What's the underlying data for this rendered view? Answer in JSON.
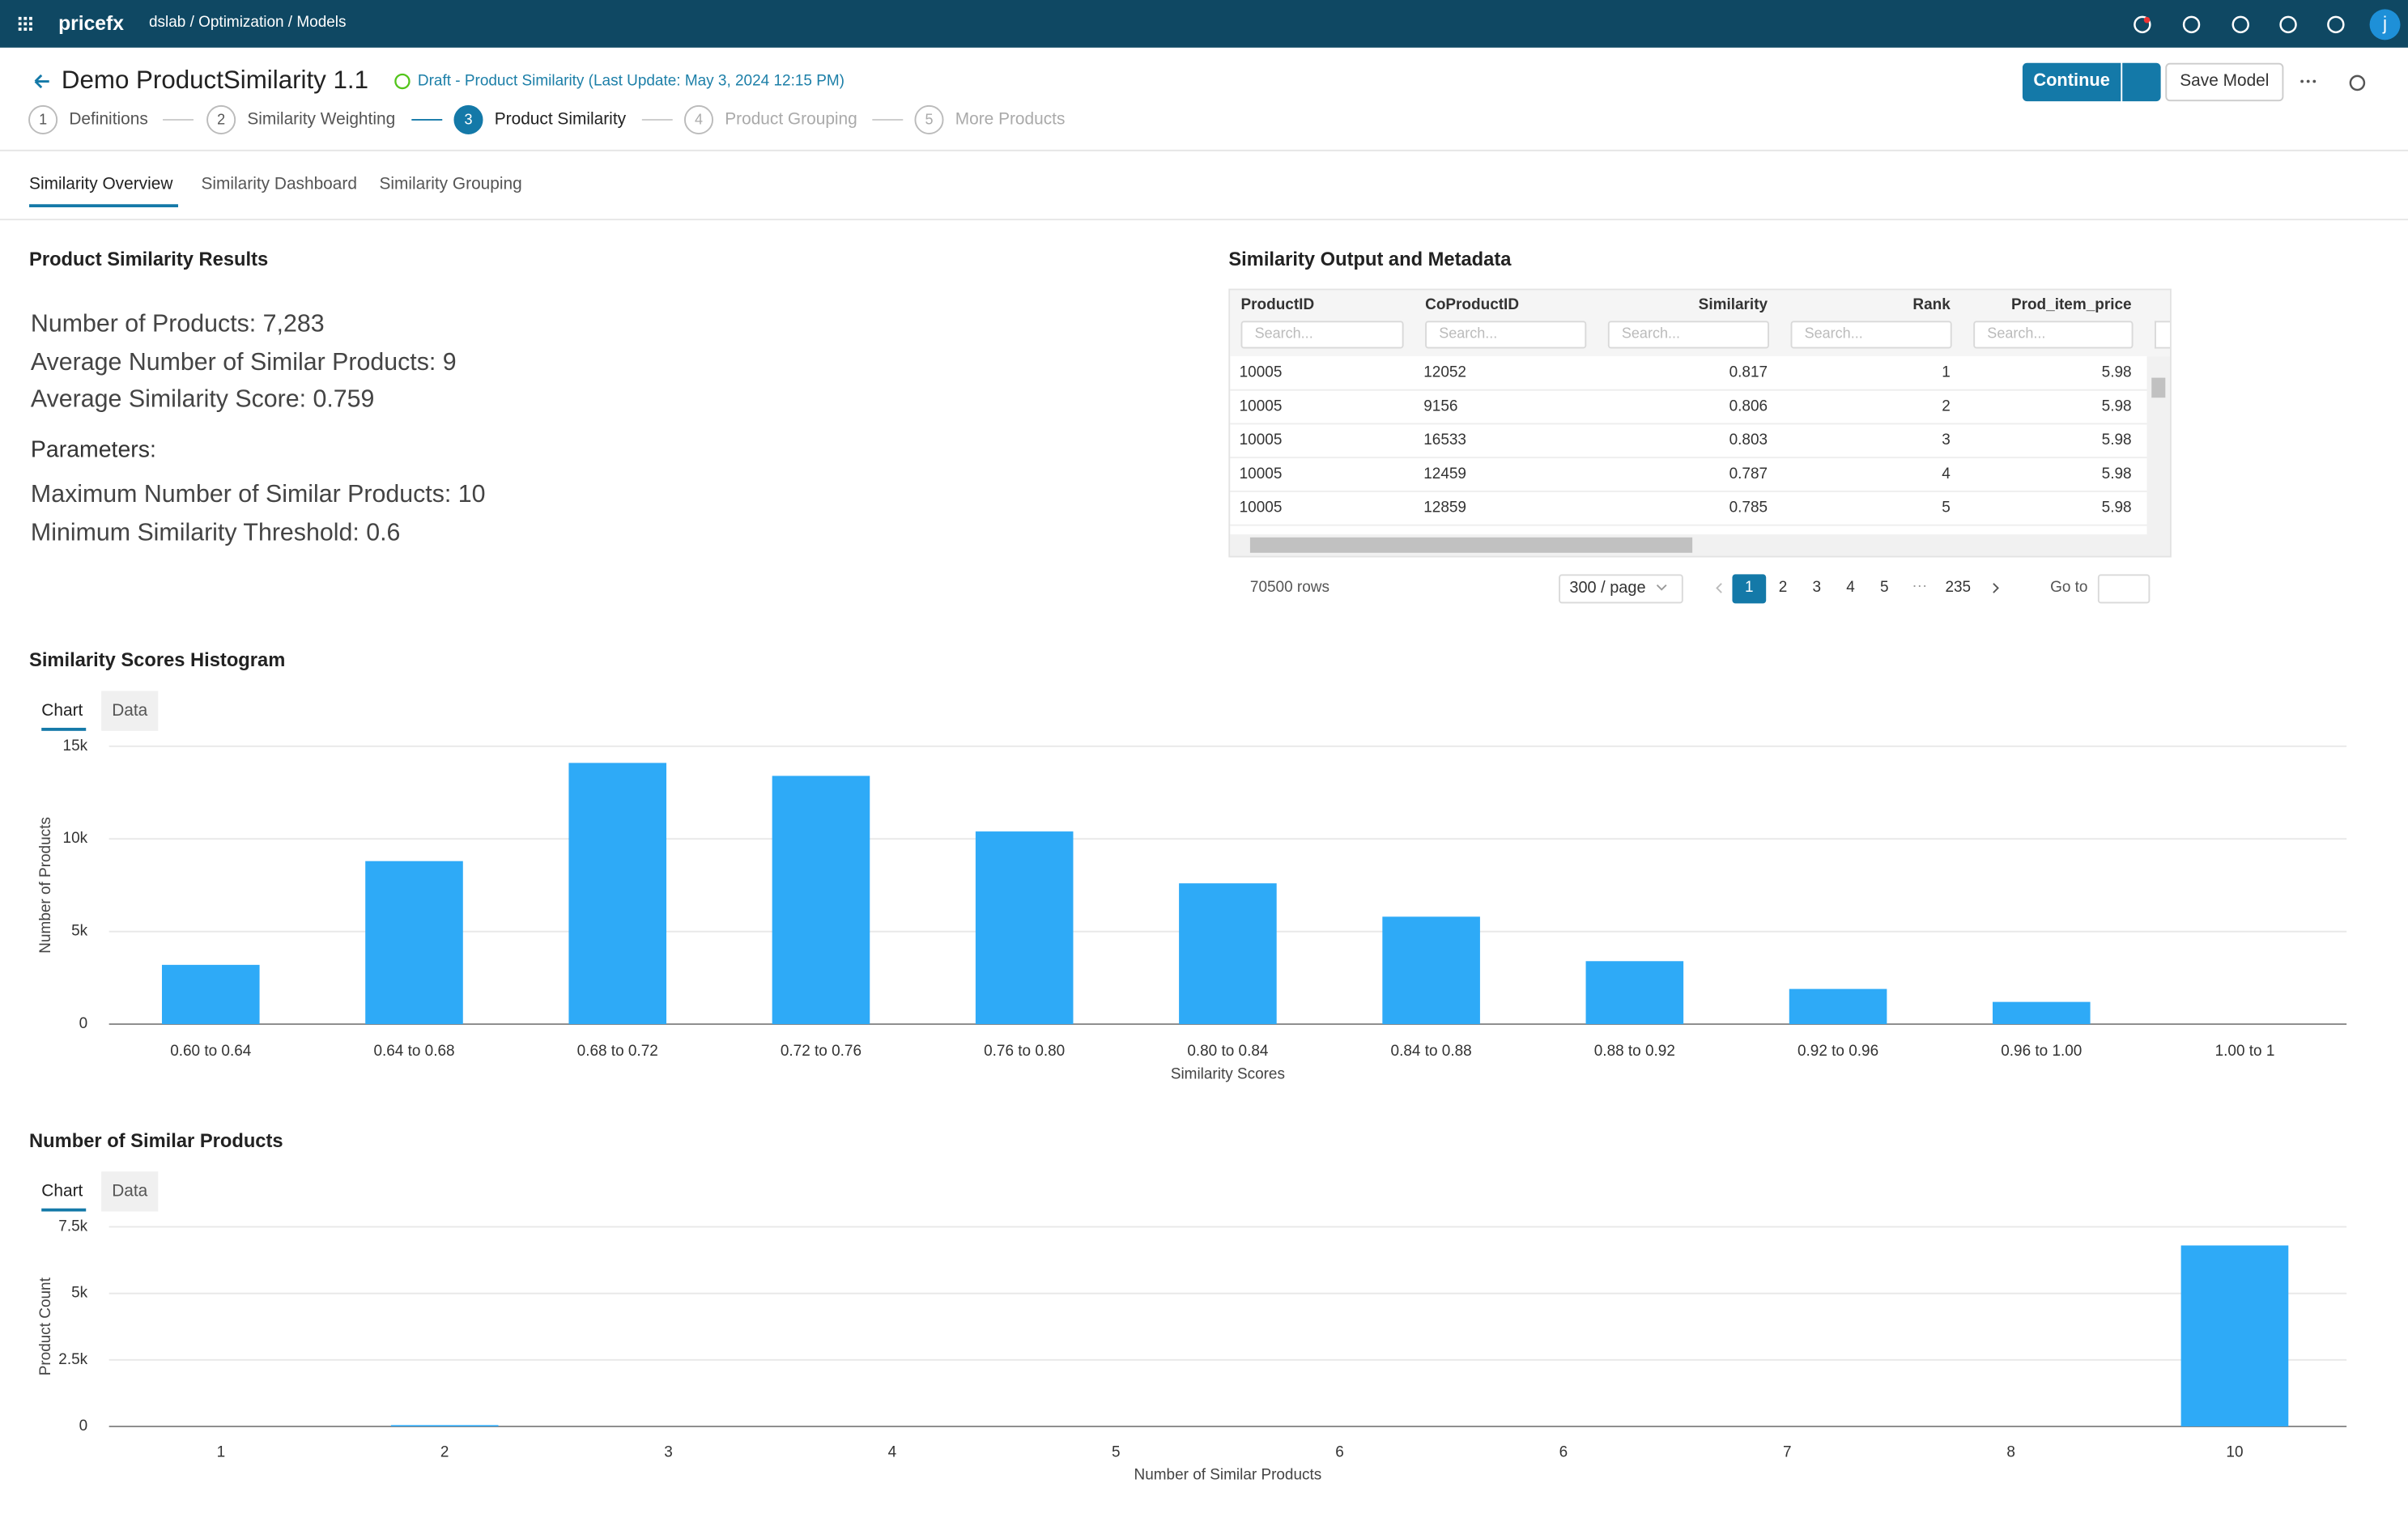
{
  "header": {
    "brand": "pricefx",
    "breadcrumb": "dslab / Optimization / Models",
    "avatar": "j"
  },
  "model": {
    "title": "Demo ProductSimilarity 1.1",
    "status": "Draft - Product Similarity (Last Update: May 3, 2024 12:15 PM)",
    "continue": "Continue",
    "save": "Save Model"
  },
  "steps": [
    {
      "number": "1",
      "label": "Definitions"
    },
    {
      "number": "2",
      "label": "Similarity Weighting"
    },
    {
      "number": "3",
      "label": "Product Similarity"
    },
    {
      "number": "4",
      "label": "Product Grouping"
    },
    {
      "number": "5",
      "label": "More Products"
    }
  ],
  "tabs": [
    "Similarity Overview",
    "Similarity Dashboard",
    "Similarity Grouping"
  ],
  "results": {
    "title": "Product Similarity Results",
    "lines": [
      "Number of Products: 7,283",
      "Average Number of Similar Products: 9",
      "Average Similarity Score: 0.759"
    ],
    "parameters_heading": "Parameters:",
    "parameters": [
      "Maximum Number of Similar Products: 10",
      "Minimum Similarity Threshold: 0.6"
    ]
  },
  "table": {
    "title": "Similarity Output and Metadata",
    "columns": [
      "ProductID",
      "CoProductID",
      "Similarity",
      "Rank",
      "Prod_item_price"
    ],
    "search_placeholder": "Search...",
    "rows": [
      [
        10005,
        12052,
        0.817,
        1,
        5.98
      ],
      [
        10005,
        9156,
        0.806,
        2,
        5.98
      ],
      [
        10005,
        16533,
        0.803,
        3,
        5.98
      ],
      [
        10005,
        12459,
        0.787,
        4,
        5.98
      ],
      [
        10005,
        12859,
        0.785,
        5,
        5.98
      ]
    ],
    "row_count": "70500 rows",
    "page_size": "300 / page",
    "pages": [
      "1",
      "2",
      "3",
      "4",
      "5",
      "235"
    ],
    "ellipsis": "···",
    "goto": "Go to"
  },
  "chart_tabs": [
    "Chart",
    "Data"
  ],
  "chart_data": [
    {
      "type": "bar",
      "title": "Similarity Scores Histogram",
      "x_label": "Similarity Scores",
      "y_label": "Number of Products",
      "color": "#2eaaf7",
      "categories": [
        "0.60 to 0.64",
        "0.64 to 0.68",
        "0.68 to 0.72",
        "0.72 to 0.76",
        "0.76 to 0.80",
        "0.80 to 0.84",
        "0.84 to 0.88",
        "0.88 to 0.92",
        "0.92 to 0.96",
        "0.96 to 1.00",
        "1.00 to 1"
      ],
      "values": [
        3200,
        8800,
        14100,
        13400,
        10400,
        7600,
        5800,
        3400,
        1900,
        1200,
        0
      ],
      "ylim": [
        0,
        15000
      ],
      "yticks": [
        0,
        {
          "value": 5000,
          "label": "5k"
        },
        {
          "value": 10000,
          "label": "10k"
        },
        {
          "value": 15000,
          "label": "15k"
        }
      ],
      "grid": true
    },
    {
      "type": "bar",
      "title": "Number of Similar Products",
      "x_label": "Number of Similar Products",
      "y_label": "Product Count",
      "color": "#2eaaf7",
      "categories": [
        "1",
        "2",
        "3",
        "4",
        "5",
        "6",
        "6",
        "7",
        "8",
        "10"
      ],
      "values": [
        0,
        50,
        0,
        0,
        0,
        0,
        0,
        0,
        0,
        6800
      ],
      "ylim": [
        0,
        7500
      ],
      "yticks": [
        0,
        {
          "value": 2500,
          "label": "2.5k"
        },
        {
          "value": 5000,
          "label": "5k"
        },
        {
          "value": 7500,
          "label": "7.5k"
        }
      ],
      "grid": true
    }
  ]
}
